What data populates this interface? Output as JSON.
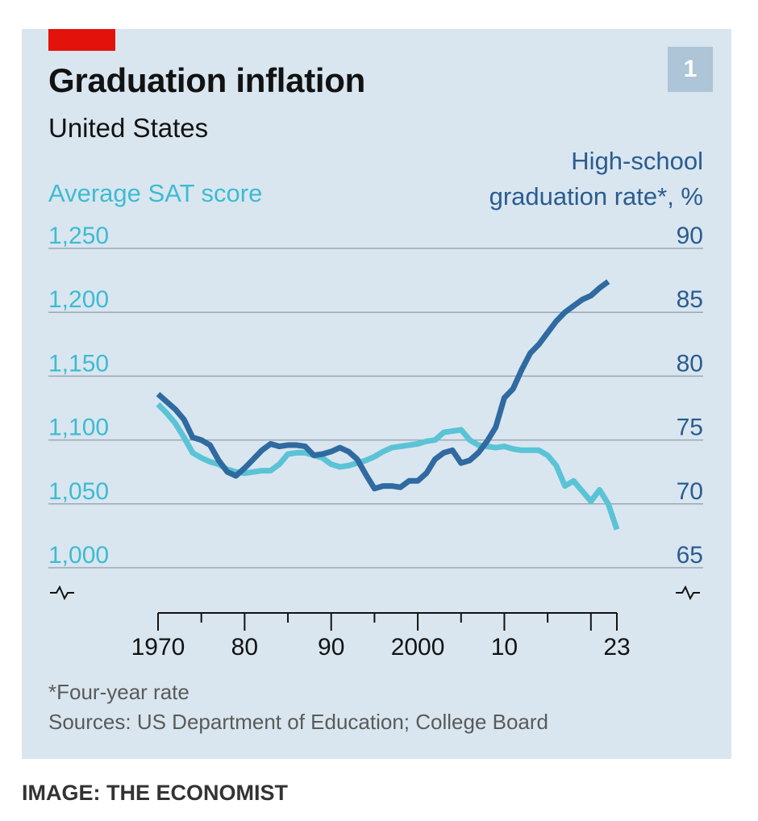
{
  "header": {
    "badge": "1",
    "title": "Graduation inflation",
    "subtitle": "United States"
  },
  "axis_titles": {
    "left": "Average SAT score",
    "right_line1": "High-school",
    "right_line2": "graduation rate*, %"
  },
  "notes": {
    "footnote": "*Four-year rate",
    "sources": "Sources: US Department of Education; College Board"
  },
  "credit": "IMAGE: THE ECONOMIST",
  "colors": {
    "sat": "#5bc3d6",
    "grad": "#2f6aa0",
    "background": "#d9e6ef",
    "accent": "#e3120b"
  },
  "chart_data": {
    "type": "line",
    "title": "Graduation inflation",
    "subtitle": "United States",
    "x_ticks": [
      "1970",
      "80",
      "90",
      "2000",
      "10",
      "23"
    ],
    "x_range": [
      1970,
      2023
    ],
    "y_left": {
      "label": "Average SAT score",
      "range": [
        1000,
        1250
      ],
      "ticks": [
        "1,000",
        "1,050",
        "1,100",
        "1,150",
        "1,200",
        "1,250"
      ]
    },
    "y_right": {
      "label": "High-school graduation rate*, %",
      "range": [
        65,
        90
      ],
      "ticks": [
        "65",
        "70",
        "75",
        "80",
        "85",
        "90"
      ]
    },
    "grid": true,
    "series": [
      {
        "name": "Average SAT score",
        "axis": "left",
        "x": [
          1970,
          1971,
          1972,
          1973,
          1974,
          1975,
          1976,
          1977,
          1978,
          1979,
          1980,
          1981,
          1982,
          1983,
          1984,
          1985,
          1986,
          1987,
          1988,
          1989,
          1990,
          1991,
          1992,
          1993,
          1994,
          1995,
          1996,
          1997,
          1998,
          1999,
          2000,
          2001,
          2002,
          2003,
          2004,
          2005,
          2006,
          2007,
          2008,
          2009,
          2010,
          2011,
          2012,
          2013,
          2014,
          2015,
          2016,
          2017,
          2018,
          2019,
          2020,
          2021,
          2022,
          2023
        ],
        "y": [
          1128,
          1121,
          1113,
          1102,
          1090,
          1086,
          1083,
          1081,
          1077,
          1075,
          1074,
          1075,
          1076,
          1076,
          1081,
          1089,
          1090,
          1090,
          1088,
          1086,
          1081,
          1079,
          1080,
          1082,
          1084,
          1087,
          1091,
          1094,
          1095,
          1096,
          1097,
          1099,
          1100,
          1106,
          1107,
          1108,
          1100,
          1096,
          1095,
          1094,
          1095,
          1093,
          1092,
          1092,
          1092,
          1088,
          1080,
          1064,
          1068,
          1060,
          1052,
          1061,
          1050,
          1030
        ]
      },
      {
        "name": "High-school graduation rate",
        "axis": "right",
        "x": [
          1970,
          1971,
          1972,
          1973,
          1974,
          1975,
          1976,
          1977,
          1978,
          1979,
          1980,
          1981,
          1982,
          1983,
          1984,
          1985,
          1986,
          1987,
          1988,
          1989,
          1990,
          1991,
          1992,
          1993,
          1994,
          1995,
          1996,
          1997,
          1998,
          1999,
          2000,
          2001,
          2002,
          2003,
          2004,
          2005,
          2006,
          2007,
          2008,
          2009,
          2010,
          2011,
          2012,
          2013,
          2014,
          2015,
          2016,
          2017,
          2018,
          2019,
          2020,
          2021,
          2022
        ],
        "y": [
          78.6,
          78,
          77.4,
          76.6,
          75.2,
          75,
          74.6,
          73.4,
          72.5,
          72.2,
          72.8,
          73.5,
          74.2,
          74.7,
          74.5,
          74.6,
          74.6,
          74.5,
          73.8,
          73.9,
          74.1,
          74.4,
          74.1,
          73.5,
          72.3,
          71.2,
          71.4,
          71.4,
          71.3,
          71.8,
          71.8,
          72.4,
          73.5,
          74,
          74.2,
          73.2,
          73.4,
          74,
          74.9,
          76,
          78.3,
          79,
          80.5,
          81.8,
          82.5,
          83.4,
          84.3,
          85,
          85.5,
          86,
          86.3,
          86.9,
          87.4
        ]
      }
    ]
  }
}
